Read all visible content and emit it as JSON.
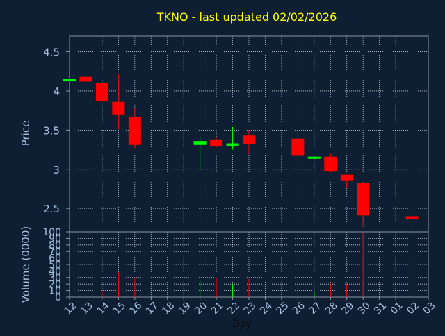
{
  "chart_data": {
    "type": "candlestick",
    "title": "TKNO - last updated 02/02/2026",
    "xlabel": "Day",
    "price_panel": {
      "ylabel": "Price",
      "ylim": [
        2.2,
        4.7
      ],
      "yticks": [
        "2.5",
        "3",
        "3.5",
        "4",
        "4.5"
      ],
      "grid": true
    },
    "volume_panel": {
      "ylabel": "Volume (0000)",
      "ylim": [
        0,
        100
      ],
      "yticks": [
        "0",
        "10",
        "20",
        "30",
        "40",
        "50",
        "60",
        "70",
        "80",
        "90",
        "100"
      ],
      "grid": true
    },
    "x_tick_labels": [
      "12",
      "13",
      "14",
      "15",
      "16",
      "17",
      "18",
      "19",
      "20",
      "21",
      "22",
      "23",
      "24",
      "25",
      "26",
      "27",
      "28",
      "29",
      "30",
      "31",
      "01",
      "02",
      "03"
    ],
    "colors": {
      "background": "#0f1f33",
      "axis": "#8a96a6",
      "grid": "#c8d0da",
      "title": "#ffff00",
      "labels": "#a8c0e0",
      "up": "#00ff00",
      "down": "#ff0000"
    },
    "candles": [
      {
        "day": "12",
        "open": 4.13,
        "high": 4.15,
        "low": 4.13,
        "close": 4.15,
        "volume": 5
      },
      {
        "day": "13",
        "open": 4.18,
        "high": 4.25,
        "low": 3.93,
        "close": 4.12,
        "volume": 10
      },
      {
        "day": "14",
        "open": 4.1,
        "high": 4.1,
        "low": 3.84,
        "close": 3.87,
        "volume": 10
      },
      {
        "day": "15",
        "open": 3.86,
        "high": 4.21,
        "low": 3.51,
        "close": 3.7,
        "volume": 38
      },
      {
        "day": "16",
        "open": 3.67,
        "high": 3.78,
        "low": 3.27,
        "close": 3.31,
        "volume": 29
      },
      {
        "day": "20",
        "open": 3.31,
        "high": 3.42,
        "low": 2.99,
        "close": 3.36,
        "volume": 27
      },
      {
        "day": "21",
        "open": 3.38,
        "high": 3.4,
        "low": 3.28,
        "close": 3.29,
        "volume": 30
      },
      {
        "day": "22",
        "open": 3.3,
        "high": 3.54,
        "low": 3.25,
        "close": 3.33,
        "volume": 20
      },
      {
        "day": "23",
        "open": 3.43,
        "high": 3.5,
        "low": 3.19,
        "close": 3.32,
        "volume": 28
      },
      {
        "day": "26",
        "open": 3.39,
        "high": 3.48,
        "low": 3.14,
        "close": 3.18,
        "volume": 21
      },
      {
        "day": "27",
        "open": 3.15,
        "high": 3.16,
        "low": 3.13,
        "close": 3.16,
        "volume": 10
      },
      {
        "day": "28",
        "open": 3.16,
        "high": 3.2,
        "low": 2.96,
        "close": 2.97,
        "volume": 21
      },
      {
        "day": "29",
        "open": 2.93,
        "high": 2.93,
        "low": 2.76,
        "close": 2.85,
        "volume": 20
      },
      {
        "day": "30",
        "open": 2.82,
        "high": 2.84,
        "low": 2.26,
        "close": 2.41,
        "volume": 100
      },
      {
        "day": "02",
        "open": 2.4,
        "high": 2.47,
        "low": 2.2,
        "close": 2.36,
        "volume": 60
      }
    ]
  }
}
